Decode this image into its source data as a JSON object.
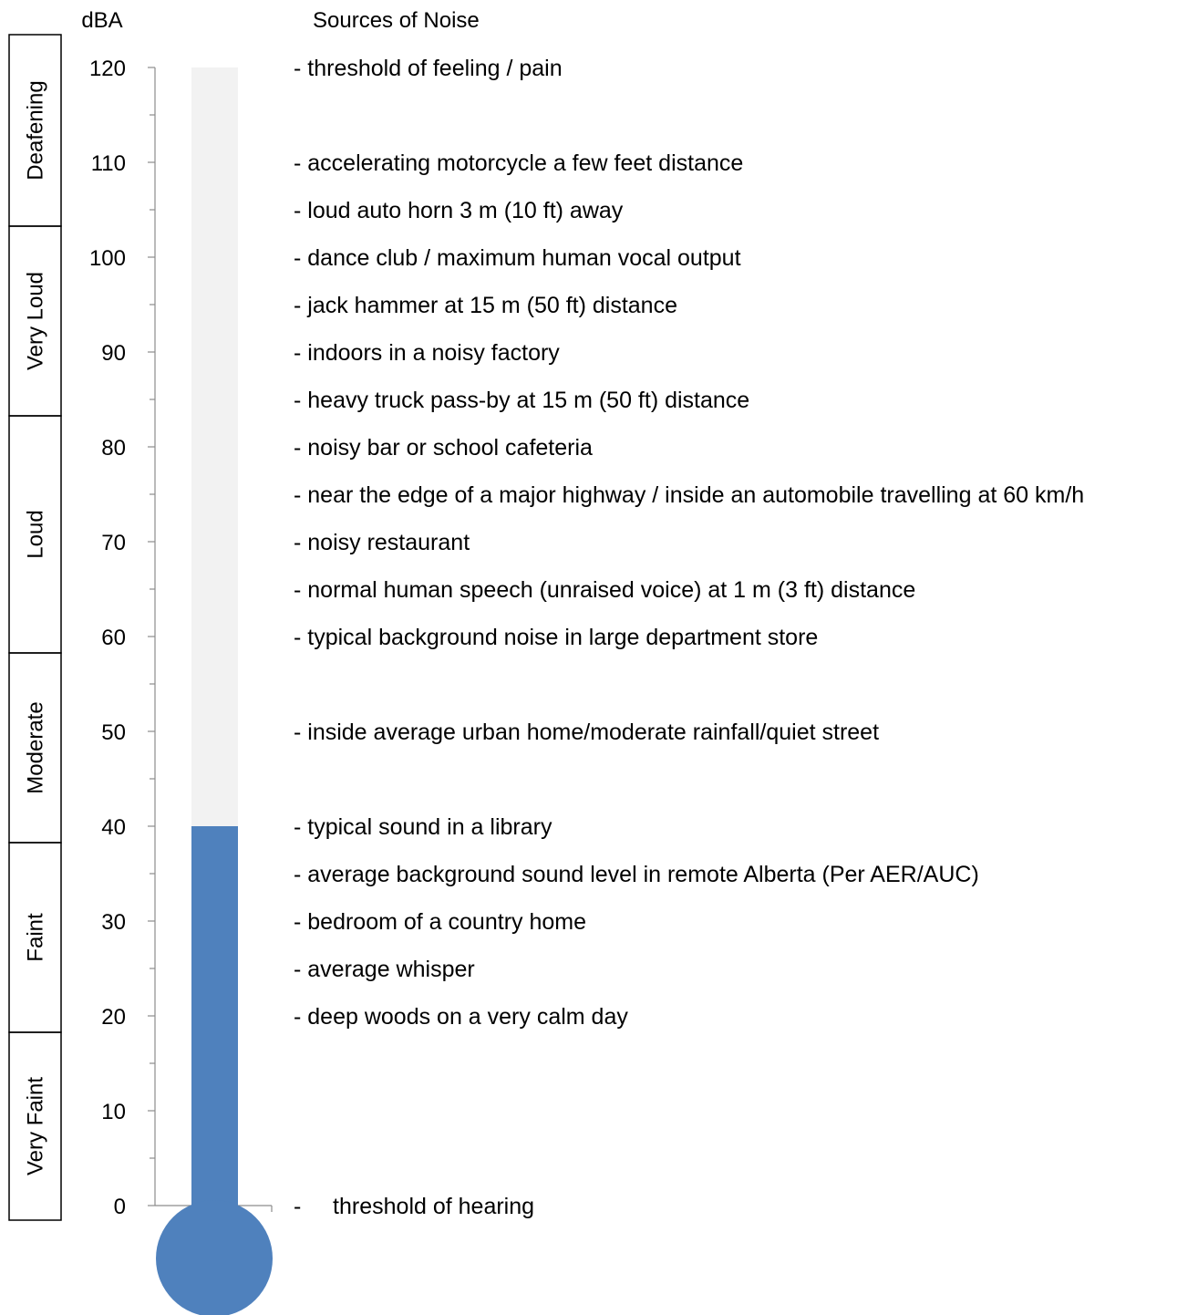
{
  "chart_data": {
    "type": "bar",
    "ylabel": "dBA",
    "sources_header": "Sources of Noise",
    "ylim": [
      0,
      120
    ],
    "ytick_step": 10,
    "y_minor_step": 5,
    "value": 40,
    "fill_color": "#4f81bd",
    "track_color": "#f2f2f2",
    "categories": [
      {
        "label": "Very Faint",
        "range": [
          0,
          20
        ]
      },
      {
        "label": "Faint",
        "range": [
          20,
          40
        ]
      },
      {
        "label": "Moderate",
        "range": [
          40,
          60
        ]
      },
      {
        "label": "Loud",
        "range": [
          60,
          85
        ]
      },
      {
        "label": "Very Loud",
        "range": [
          85,
          105
        ]
      },
      {
        "label": "Deafening",
        "range": [
          105,
          120
        ]
      }
    ],
    "sources": [
      {
        "db": 120,
        "text": "- threshold of feeling / pain"
      },
      {
        "db": 110,
        "text": "- accelerating motorcycle a few feet distance"
      },
      {
        "db": 105,
        "text": "- loud auto horn 3 m (10 ft) away"
      },
      {
        "db": 100,
        "text": "- dance club / maximum human vocal output"
      },
      {
        "db": 95,
        "text": "- jack hammer at 15 m (50 ft) distance"
      },
      {
        "db": 90,
        "text": "- indoors in a noisy factory"
      },
      {
        "db": 85,
        "text": "- heavy truck pass-by at 15 m (50 ft) distance"
      },
      {
        "db": 80,
        "text": "- noisy bar or school cafeteria"
      },
      {
        "db": 75,
        "text": "- near the edge of a major highway / inside an automobile travelling at 60 km/h"
      },
      {
        "db": 70,
        "text": "- noisy restaurant"
      },
      {
        "db": 65,
        "text": "- normal human speech (unraised voice) at 1 m (3 ft) distance"
      },
      {
        "db": 60,
        "text": "- typical background noise in large department store"
      },
      {
        "db": 50,
        "text": "- inside average urban home/moderate rainfall/quiet street"
      },
      {
        "db": 40,
        "text": "- typical sound in a library"
      },
      {
        "db": 35,
        "text": "- average background sound level in remote Alberta (Per AER/AUC)"
      },
      {
        "db": 30,
        "text": "- bedroom of a country home"
      },
      {
        "db": 25,
        "text": "- average whisper"
      },
      {
        "db": 20,
        "text": "- deep woods on a very calm day"
      },
      {
        "db": 0,
        "text": "-     threshold of hearing"
      }
    ]
  }
}
